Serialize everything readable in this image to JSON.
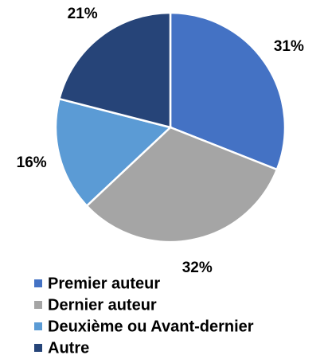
{
  "chart_data": {
    "type": "pie",
    "categories": [
      "Premier auteur",
      "Dernier auteur",
      "Deuxième ou Avant-dernier",
      "Autre"
    ],
    "values": [
      31,
      32,
      16,
      21
    ],
    "value_labels": [
      "31%",
      "32%",
      "16%",
      "21%"
    ],
    "colors": [
      "#4472c4",
      "#a5a5a5",
      "#5b9bd5",
      "#264478"
    ],
    "legend": "bottom"
  }
}
